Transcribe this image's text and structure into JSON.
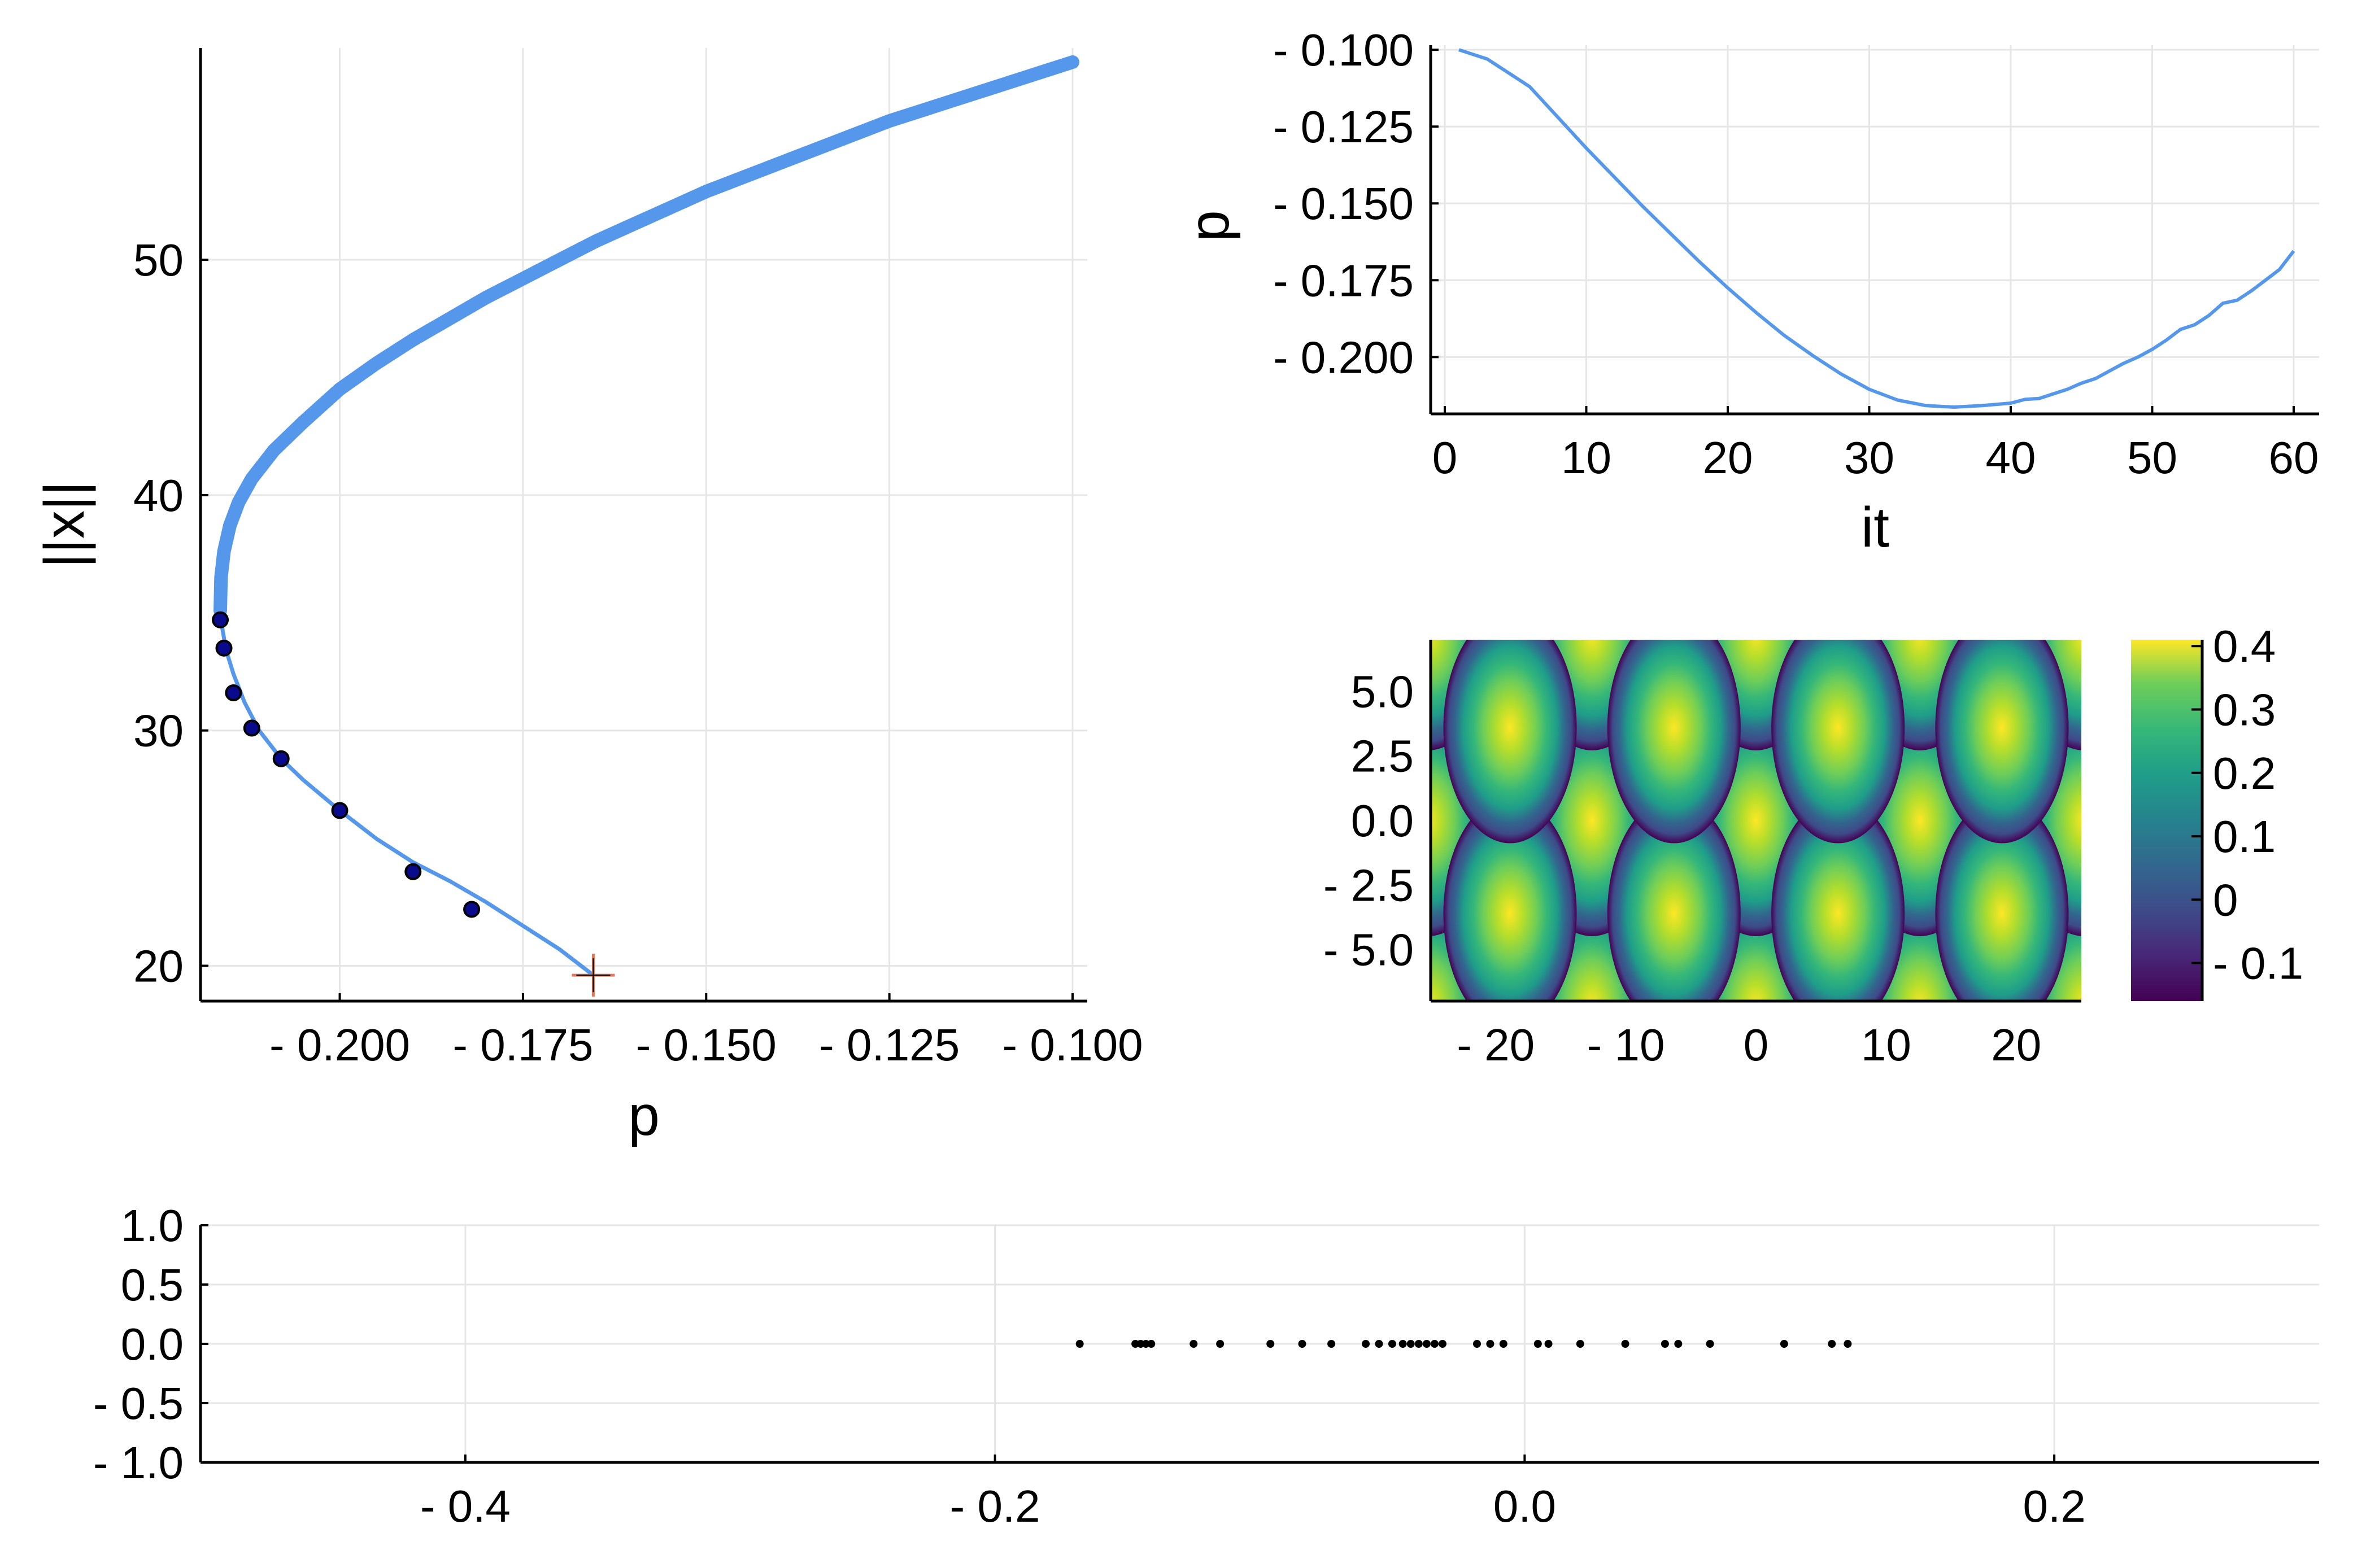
{
  "colors": {
    "series": "#5597ea",
    "marker": "#0a0a8c",
    "cross": "#e07a5f",
    "axis": "#000000",
    "grid": "#e6e6e6",
    "dots": "#000000"
  },
  "chart_data": [
    {
      "id": "branch",
      "type": "line",
      "xlabel": "p",
      "ylabel": "||x||",
      "xlim": [
        -0.219,
        -0.098
      ],
      "ylim": [
        18.5,
        59
      ],
      "xticks": [
        {
          "v": -0.2,
          "label": "- 0.200"
        },
        {
          "v": -0.175,
          "label": "- 0.175"
        },
        {
          "v": -0.15,
          "label": "- 0.150"
        },
        {
          "v": -0.125,
          "label": "- 0.125"
        },
        {
          "v": -0.1,
          "label": "- 0.100"
        }
      ],
      "yticks": [
        {
          "v": 20,
          "label": "20"
        },
        {
          "v": 30,
          "label": "30"
        },
        {
          "v": 40,
          "label": "40"
        },
        {
          "v": 50,
          "label": "50"
        }
      ],
      "grid": true,
      "series": [
        {
          "style": "thin",
          "x": [
            -0.1654,
            -0.17,
            -0.175,
            -0.18,
            -0.185,
            -0.19,
            -0.195,
            -0.2,
            -0.205,
            -0.208,
            -0.211,
            -0.213,
            -0.2145,
            -0.2155,
            -0.216,
            -0.2163
          ],
          "y": [
            19.6,
            20.7,
            21.7,
            22.7,
            23.6,
            24.4,
            25.4,
            26.6,
            27.9,
            28.8,
            30.0,
            31.2,
            32.4,
            33.4,
            34.3,
            35.1
          ]
        },
        {
          "style": "thick",
          "x": [
            -0.2163,
            -0.2162,
            -0.2158,
            -0.215,
            -0.2138,
            -0.212,
            -0.209,
            -0.205,
            -0.2,
            -0.195,
            -0.19,
            -0.185,
            -0.18,
            -0.175,
            -0.17,
            -0.165,
            -0.16,
            -0.155,
            -0.15,
            -0.145,
            -0.14,
            -0.135,
            -0.13,
            -0.125,
            -0.12,
            -0.115,
            -0.11,
            -0.105,
            -0.1
          ],
          "y": [
            35.1,
            36.5,
            37.6,
            38.7,
            39.7,
            40.7,
            41.9,
            43.1,
            44.5,
            45.6,
            46.6,
            47.5,
            48.4,
            49.2,
            50.0,
            50.8,
            51.5,
            52.2,
            52.9,
            53.5,
            54.1,
            54.7,
            55.3,
            55.9,
            56.4,
            56.9,
            57.4,
            57.9,
            58.4
          ]
        }
      ],
      "markers": {
        "x": [
          -0.2163,
          -0.2158,
          -0.2145,
          -0.212,
          -0.208,
          -0.2,
          -0.19,
          -0.182
        ],
        "y": [
          34.7,
          33.5,
          31.6,
          30.1,
          28.8,
          26.6,
          24.0,
          22.4
        ]
      },
      "endpoint": {
        "x": -0.1654,
        "y": 19.6
      }
    },
    {
      "id": "iterations",
      "type": "line",
      "xlabel": "it",
      "ylabel": "p",
      "xlim": [
        0,
        61
      ],
      "ylim": [
        -0.2185,
        -0.0985
      ],
      "xticks": [
        {
          "v": 0,
          "label": "0"
        },
        {
          "v": 10,
          "label": "10"
        },
        {
          "v": 20,
          "label": "20"
        },
        {
          "v": 30,
          "label": "30"
        },
        {
          "v": 40,
          "label": "40"
        },
        {
          "v": 50,
          "label": "50"
        },
        {
          "v": 60,
          "label": "60"
        }
      ],
      "yticks": [
        {
          "v": -0.1,
          "label": "- 0.100"
        },
        {
          "v": -0.125,
          "label": "- 0.125"
        },
        {
          "v": -0.15,
          "label": "- 0.150"
        },
        {
          "v": -0.175,
          "label": "- 0.175"
        },
        {
          "v": -0.2,
          "label": "- 0.200"
        }
      ],
      "grid": true,
      "series": [
        {
          "x": [
            1,
            3,
            5,
            6,
            8,
            10,
            12,
            14,
            16,
            18,
            20,
            22,
            24,
            26,
            28,
            30,
            32,
            34,
            36,
            38,
            40,
            41,
            42,
            43,
            44,
            45,
            46,
            47,
            48,
            49,
            50,
            51,
            52,
            53,
            54,
            55,
            56,
            57,
            58,
            59,
            60
          ],
          "y": [
            -0.1,
            -0.103,
            -0.109,
            -0.112,
            -0.122,
            -0.132,
            -0.1415,
            -0.151,
            -0.16,
            -0.169,
            -0.1775,
            -0.1855,
            -0.193,
            -0.1995,
            -0.2055,
            -0.2105,
            -0.214,
            -0.2158,
            -0.2163,
            -0.2158,
            -0.215,
            -0.2138,
            -0.2135,
            -0.212,
            -0.2105,
            -0.2085,
            -0.207,
            -0.2045,
            -0.202,
            -0.2,
            -0.1975,
            -0.1945,
            -0.191,
            -0.1895,
            -0.1865,
            -0.1825,
            -0.1815,
            -0.1785,
            -0.175,
            -0.1715,
            -0.1655
          ]
        }
      ]
    },
    {
      "id": "solution",
      "type": "heatmap",
      "xlim": [
        -25,
        25
      ],
      "ylim": [
        -7,
        7
      ],
      "xticks": [
        {
          "v": -20,
          "label": "- 20"
        },
        {
          "v": -10,
          "label": "- 10"
        },
        {
          "v": 0,
          "label": "0"
        },
        {
          "v": 10,
          "label": "10"
        },
        {
          "v": 20,
          "label": "20"
        }
      ],
      "yticks": [
        {
          "v": 5,
          "label": "5.0"
        },
        {
          "v": 2.5,
          "label": "2.5"
        },
        {
          "v": 0,
          "label": "0.0"
        },
        {
          "v": -2.5,
          "label": "- 2.5"
        },
        {
          "v": -5,
          "label": "- 5.0"
        }
      ],
      "grid": false,
      "colormap": "viridis",
      "clim": [
        -0.16,
        0.41
      ],
      "colorbar_ticks": [
        {
          "v": 0.4,
          "label": "0.4"
        },
        {
          "v": 0.3,
          "label": "0.3"
        },
        {
          "v": 0.2,
          "label": "0.2"
        },
        {
          "v": 0.1,
          "label": "0.1"
        },
        {
          "v": 0,
          "label": "0"
        },
        {
          "v": -0.1,
          "label": "- 0.1"
        }
      ],
      "pattern": {
        "type": "hexagonal spots",
        "spot_spacing_x": 12.6,
        "spot_row_spacing_y": 3.6,
        "spot_centers_row_y0_x": [
          -12.6,
          0,
          12.6,
          25.2,
          -25.2
        ],
        "spot_centers_row_y36_x": [
          -18.9,
          -6.3,
          6.3,
          18.9
        ]
      }
    },
    {
      "id": "eigenvalues",
      "type": "scatter",
      "xlim": [
        -0.5,
        0.3
      ],
      "ylim": [
        -1,
        1
      ],
      "xticks": [
        {
          "v": -0.4,
          "label": "- 0.4"
        },
        {
          "v": -0.2,
          "label": "- 0.2"
        },
        {
          "v": 0,
          "label": "0.0"
        },
        {
          "v": 0.2,
          "label": "0.2"
        }
      ],
      "yticks": [
        {
          "v": 1,
          "label": "1.0"
        },
        {
          "v": 0.5,
          "label": "0.5"
        },
        {
          "v": 0,
          "label": "0.0"
        },
        {
          "v": -0.5,
          "label": "- 0.5"
        },
        {
          "v": -1,
          "label": "- 1.0"
        }
      ],
      "grid": true,
      "x": [
        -0.168,
        -0.147,
        -0.145,
        -0.143,
        -0.141,
        -0.125,
        -0.115,
        -0.096,
        -0.084,
        -0.073,
        -0.06,
        -0.055,
        -0.05,
        -0.046,
        -0.043,
        -0.04,
        -0.037,
        -0.034,
        -0.031,
        -0.018,
        -0.013,
        -0.008,
        0.005,
        0.009,
        0.021,
        0.038,
        0.053,
        0.058,
        0.07,
        0.098,
        0.116,
        0.122
      ],
      "y": [
        0,
        0,
        0,
        0,
        0,
        0,
        0,
        0,
        0,
        0,
        0,
        0,
        0,
        0,
        0,
        0,
        0,
        0,
        0,
        0,
        0,
        0,
        0,
        0,
        0,
        0,
        0,
        0,
        0,
        0,
        0,
        0
      ]
    }
  ]
}
